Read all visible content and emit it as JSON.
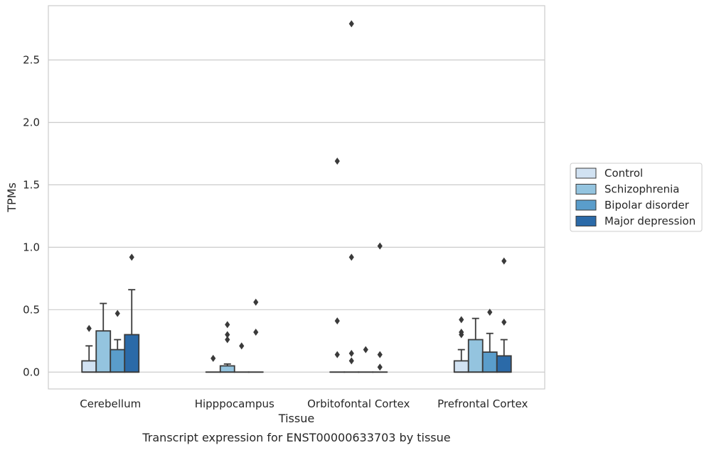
{
  "chart_data": {
    "type": "box",
    "xlabel": "Tissue",
    "ylabel": "TPMs",
    "caption": "Transcript expression for ENST00000633703 by tissue",
    "ylim": [
      -0.135,
      2.935
    ],
    "yticks": [
      "0.0",
      "0.5",
      "1.0",
      "1.5",
      "2.0",
      "2.5"
    ],
    "ytick_values": [
      0.0,
      0.5,
      1.0,
      1.5,
      2.0,
      2.5
    ],
    "grid": "horizontal",
    "legend_position": "right",
    "categories": [
      "Cerebellum",
      "Hipppocampus",
      "Orbitofontal Cortex",
      "Prefrontal Cortex"
    ],
    "series": [
      {
        "name": "Control",
        "color": "#d1e2f2",
        "boxes": [
          {
            "q1": 0.0,
            "median": 0.0,
            "q3": 0.09,
            "whisker_low": 0.0,
            "whisker_high": 0.21,
            "outliers": [
              0.35
            ]
          },
          {
            "q1": 0.0,
            "median": 0.0,
            "q3": 0.0,
            "whisker_low": 0.0,
            "whisker_high": 0.0,
            "outliers": [
              0.11
            ]
          },
          {
            "q1": 0.0,
            "median": 0.0,
            "q3": 0.0,
            "whisker_low": 0.0,
            "whisker_high": 0.0,
            "outliers": [
              0.14,
              0.41,
              1.69
            ]
          },
          {
            "q1": 0.0,
            "median": 0.0,
            "q3": 0.09,
            "whisker_low": 0.0,
            "whisker_high": 0.18,
            "outliers": [
              0.3,
              0.32,
              0.42
            ]
          }
        ]
      },
      {
        "name": "Schizophrenia",
        "color": "#94c4df",
        "boxes": [
          {
            "q1": 0.0,
            "median": 0.0,
            "q3": 0.33,
            "whisker_low": 0.0,
            "whisker_high": 0.55,
            "outliers": []
          },
          {
            "q1": 0.0,
            "median": 0.0,
            "q3": 0.05,
            "whisker_low": 0.0,
            "whisker_high": 0.065,
            "outliers": [
              0.26,
              0.3,
              0.38
            ]
          },
          {
            "q1": 0.0,
            "median": 0.0,
            "q3": 0.0,
            "whisker_low": 0.0,
            "whisker_high": 0.0,
            "outliers": [
              0.09,
              0.15,
              0.92,
              2.79
            ]
          },
          {
            "q1": 0.0,
            "median": 0.0,
            "q3": 0.26,
            "whisker_low": 0.0,
            "whisker_high": 0.43,
            "outliers": []
          }
        ]
      },
      {
        "name": "Bipolar disorder",
        "color": "#5a9dcb",
        "boxes": [
          {
            "q1": 0.0,
            "median": 0.0,
            "q3": 0.18,
            "whisker_low": 0.0,
            "whisker_high": 0.26,
            "outliers": [
              0.47
            ]
          },
          {
            "q1": 0.0,
            "median": 0.0,
            "q3": 0.0,
            "whisker_low": 0.0,
            "whisker_high": 0.0,
            "outliers": [
              0.21
            ]
          },
          {
            "q1": 0.0,
            "median": 0.0,
            "q3": 0.0,
            "whisker_low": 0.0,
            "whisker_high": 0.0,
            "outliers": [
              0.18
            ]
          },
          {
            "q1": 0.0,
            "median": 0.0,
            "q3": 0.16,
            "whisker_low": 0.0,
            "whisker_high": 0.31,
            "outliers": [
              0.48
            ]
          }
        ]
      },
      {
        "name": "Major depression",
        "color": "#2b6aa8",
        "boxes": [
          {
            "q1": 0.0,
            "median": 0.0,
            "q3": 0.3,
            "whisker_low": 0.0,
            "whisker_high": 0.66,
            "outliers": [
              0.92
            ]
          },
          {
            "q1": 0.0,
            "median": 0.0,
            "q3": 0.0,
            "whisker_low": 0.0,
            "whisker_high": 0.0,
            "outliers": [
              0.32,
              0.56
            ]
          },
          {
            "q1": 0.0,
            "median": 0.0,
            "q3": 0.0,
            "whisker_low": 0.0,
            "whisker_high": 0.0,
            "outliers": [
              0.04,
              0.14,
              1.01
            ]
          },
          {
            "q1": 0.0,
            "median": 0.0,
            "q3": 0.13,
            "whisker_low": 0.0,
            "whisker_high": 0.26,
            "outliers": [
              0.4,
              0.89
            ]
          }
        ]
      }
    ]
  }
}
